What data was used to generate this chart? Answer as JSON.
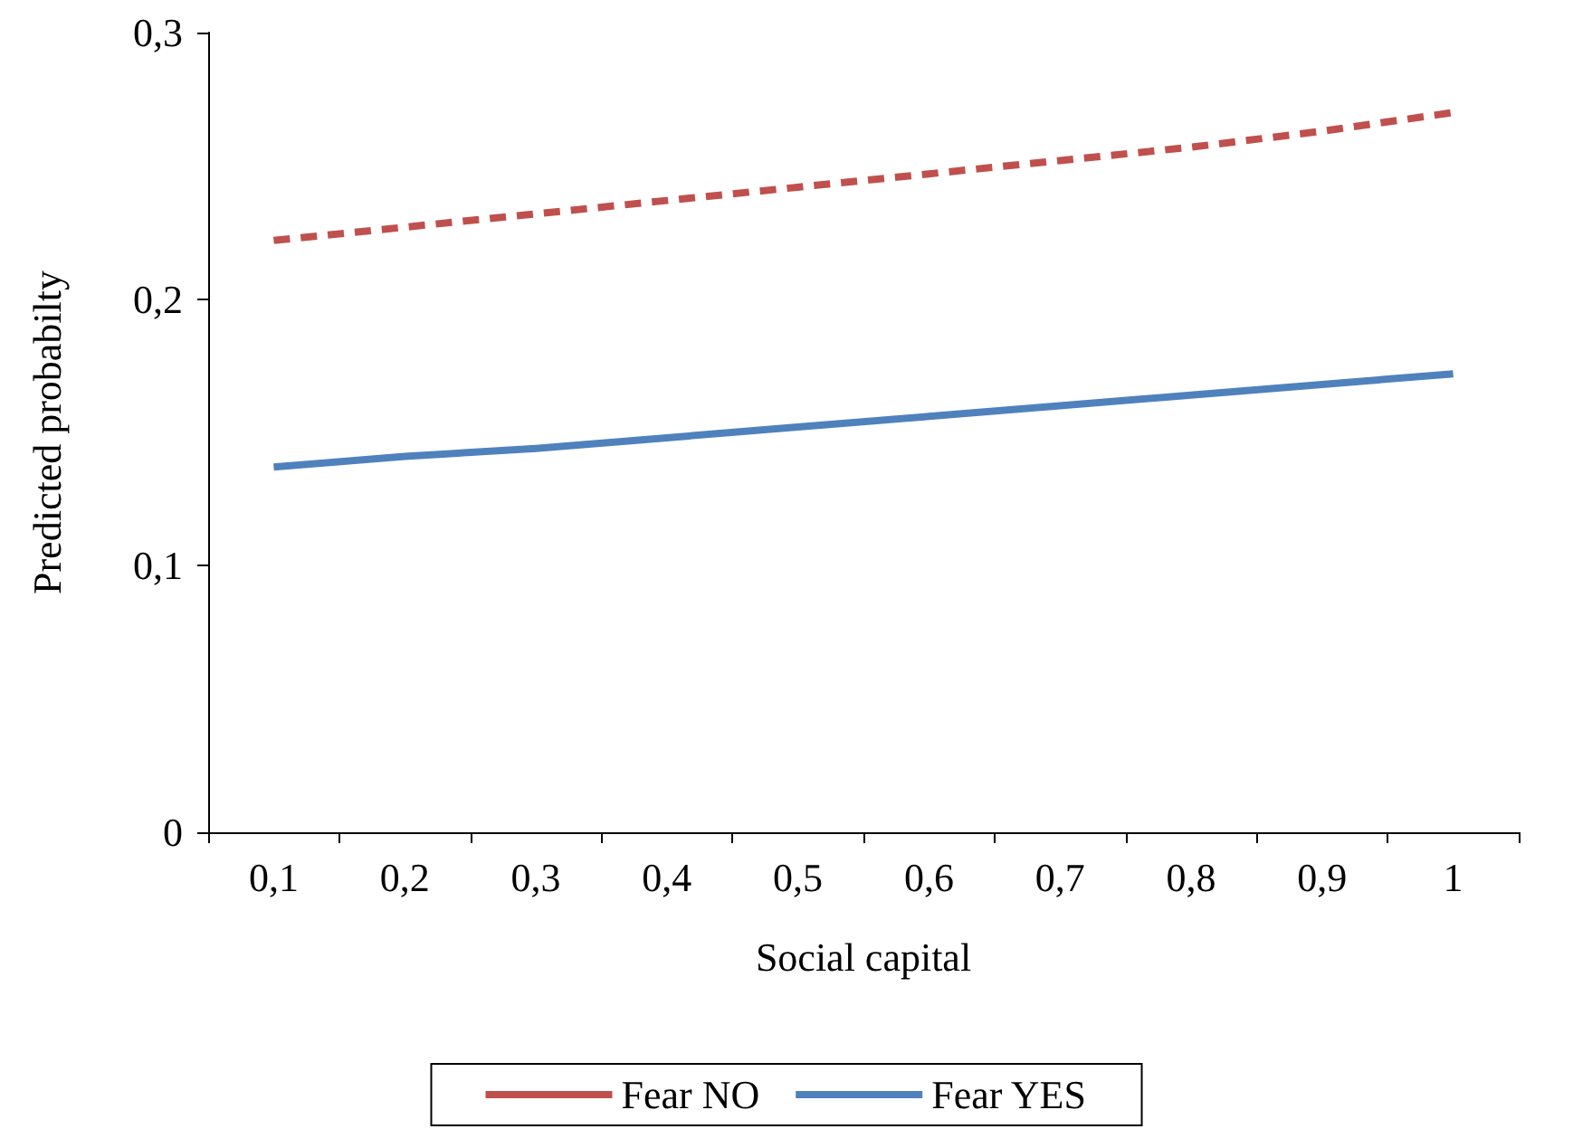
{
  "chart_data": {
    "type": "line",
    "xlabel": "Social capital",
    "ylabel": "Predicted probabilty",
    "categories": [
      "0,1",
      "0,2",
      "0,3",
      "0,4",
      "0,5",
      "0,6",
      "0,7",
      "0,8",
      "0,9",
      "1"
    ],
    "series": [
      {
        "name": "Fear NO",
        "color": "#c0504d",
        "line_style": "dashed",
        "values": [
          0.222,
          0.227,
          0.232,
          0.237,
          0.242,
          0.247,
          0.252,
          0.257,
          0.263,
          0.27
        ]
      },
      {
        "name": "Fear YES",
        "color": "#4f81bd",
        "line_style": "solid",
        "values": [
          0.137,
          0.141,
          0.144,
          0.148,
          0.152,
          0.156,
          0.16,
          0.164,
          0.168,
          0.172
        ]
      }
    ],
    "ylim": [
      0,
      0.3
    ],
    "yticks": [
      0,
      {
        "value": 0.1,
        "label": "0,1"
      },
      {
        "value": 0.2,
        "label": "0,2"
      },
      {
        "value": 0.3,
        "label": "0,3"
      }
    ],
    "marker": "none",
    "grid": false,
    "legend": "bottom"
  }
}
